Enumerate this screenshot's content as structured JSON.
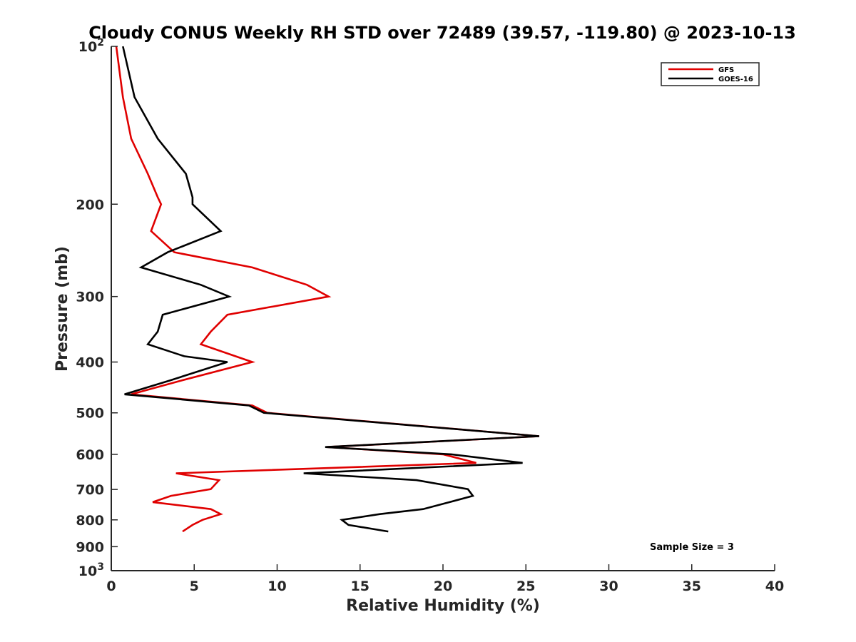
{
  "chart_data": {
    "type": "line",
    "title": "Cloudy CONUS Weekly RH STD over 72489 (39.57, -119.80) @ 2023-10-13",
    "xlabel": "Relative Humidity (%)",
    "ylabel": "Pressure (mb)",
    "xlim": [
      0,
      40
    ],
    "ylim": [
      100,
      1000
    ],
    "y_scale": "log",
    "y_reversed": true,
    "x_ticks": [
      0,
      5,
      10,
      15,
      20,
      25,
      30,
      35,
      40
    ],
    "y_ticks": [
      {
        "value": 100,
        "label": "10",
        "sup": "2"
      },
      {
        "value": 200,
        "label": "200",
        "sup": ""
      },
      {
        "value": 300,
        "label": "300",
        "sup": ""
      },
      {
        "value": 400,
        "label": "400",
        "sup": ""
      },
      {
        "value": 500,
        "label": "500",
        "sup": ""
      },
      {
        "value": 600,
        "label": "600",
        "sup": ""
      },
      {
        "value": 700,
        "label": "700",
        "sup": ""
      },
      {
        "value": 800,
        "label": "800",
        "sup": ""
      },
      {
        "value": 900,
        "label": "900",
        "sup": ""
      },
      {
        "value": 1000,
        "label": "10",
        "sup": "3"
      }
    ],
    "legend_position": "top-right",
    "grid": false,
    "series": [
      {
        "name": "GFS",
        "color": "#e00000",
        "points": [
          [
            0.3,
            100
          ],
          [
            0.7,
            125
          ],
          [
            1.2,
            150
          ],
          [
            2.2,
            175
          ],
          [
            2.8,
            194
          ],
          [
            3.0,
            200
          ],
          [
            2.4,
            225
          ],
          [
            3.8,
            247
          ],
          [
            8.5,
            264
          ],
          [
            11.8,
            285
          ],
          [
            13.1,
            300
          ],
          [
            7.0,
            325
          ],
          [
            6.0,
            350
          ],
          [
            5.4,
            370
          ],
          [
            8.5,
            400
          ],
          [
            4.2,
            434
          ],
          [
            1.2,
            461
          ],
          [
            8.5,
            484
          ],
          [
            9.4,
            500
          ],
          [
            25.8,
            554
          ],
          [
            13.0,
            581
          ],
          [
            20.0,
            600
          ],
          [
            22.0,
            623
          ],
          [
            3.9,
            652
          ],
          [
            6.5,
            672
          ],
          [
            6.0,
            699
          ],
          [
            3.6,
            720
          ],
          [
            2.5,
            740
          ],
          [
            6.0,
            763
          ],
          [
            6.6,
            780
          ],
          [
            5.5,
            800
          ],
          [
            4.9,
            818
          ],
          [
            4.3,
            842
          ]
        ]
      },
      {
        "name": "GOES-16",
        "color": "#000000",
        "points": [
          [
            0.7,
            100
          ],
          [
            1.4,
            125
          ],
          [
            2.8,
            150
          ],
          [
            4.5,
            175
          ],
          [
            4.9,
            194
          ],
          [
            4.9,
            200
          ],
          [
            6.6,
            225
          ],
          [
            3.4,
            247
          ],
          [
            1.8,
            264
          ],
          [
            5.4,
            285
          ],
          [
            7.1,
            300
          ],
          [
            3.1,
            325
          ],
          [
            2.8,
            350
          ],
          [
            2.2,
            370
          ],
          [
            4.4,
            390
          ],
          [
            7.0,
            400
          ],
          [
            3.5,
            434
          ],
          [
            0.8,
            461
          ],
          [
            8.3,
            484
          ],
          [
            9.2,
            500
          ],
          [
            25.8,
            554
          ],
          [
            12.9,
            581
          ],
          [
            20.5,
            600
          ],
          [
            24.8,
            623
          ],
          [
            11.6,
            652
          ],
          [
            18.4,
            672
          ],
          [
            21.5,
            699
          ],
          [
            21.8,
            720
          ],
          [
            20.4,
            740
          ],
          [
            18.8,
            763
          ],
          [
            16.2,
            780
          ],
          [
            13.9,
            800
          ],
          [
            14.3,
            818
          ],
          [
            16.7,
            842
          ]
        ]
      }
    ],
    "annotations": [
      {
        "text": "Sample Size = 3"
      }
    ]
  }
}
